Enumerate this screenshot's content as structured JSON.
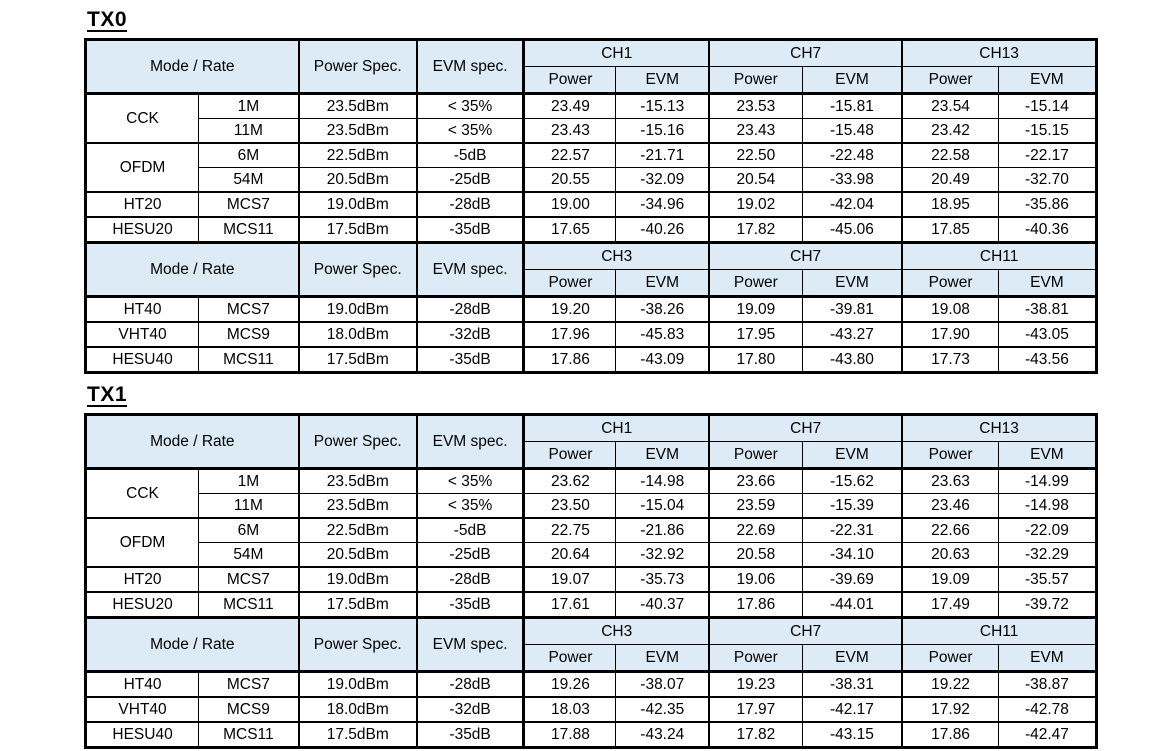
{
  "colors": {
    "header_bg": "#dcebf5",
    "border": "#000000",
    "text": "#000000",
    "page_bg": "#ffffff"
  },
  "labels": {
    "mode_rate": "Mode / Rate",
    "power_spec": "Power Spec.",
    "evm_spec": "EVM spec.",
    "power": "Power",
    "evm": "EVM"
  },
  "sections": [
    {
      "title": "TX0",
      "blocks": [
        {
          "channels": [
            "CH1",
            "CH7",
            "CH13"
          ],
          "groups": [
            {
              "mode": "CCK",
              "rows": [
                {
                  "rate": "1M",
                  "power_spec": "23.5dBm",
                  "evm_spec": "< 35%",
                  "values": [
                    "23.49",
                    "-15.13",
                    "23.53",
                    "-15.81",
                    "23.54",
                    "-15.14"
                  ]
                },
                {
                  "rate": "11M",
                  "power_spec": "23.5dBm",
                  "evm_spec": "< 35%",
                  "values": [
                    "23.43",
                    "-15.16",
                    "23.43",
                    "-15.48",
                    "23.42",
                    "-15.15"
                  ]
                }
              ]
            },
            {
              "mode": "OFDM",
              "rows": [
                {
                  "rate": "6M",
                  "power_spec": "22.5dBm",
                  "evm_spec": "-5dB",
                  "values": [
                    "22.57",
                    "-21.71",
                    "22.50",
                    "-22.48",
                    "22.58",
                    "-22.17"
                  ]
                },
                {
                  "rate": "54M",
                  "power_spec": "20.5dBm",
                  "evm_spec": "-25dB",
                  "values": [
                    "20.55",
                    "-32.09",
                    "20.54",
                    "-33.98",
                    "20.49",
                    "-32.70"
                  ]
                }
              ]
            },
            {
              "mode": "HT20",
              "rows": [
                {
                  "rate": "MCS7",
                  "power_spec": "19.0dBm",
                  "evm_spec": "-28dB",
                  "values": [
                    "19.00",
                    "-34.96",
                    "19.02",
                    "-42.04",
                    "18.95",
                    "-35.86"
                  ]
                }
              ]
            },
            {
              "mode": "HESU20",
              "rows": [
                {
                  "rate": "MCS11",
                  "power_spec": "17.5dBm",
                  "evm_spec": "-35dB",
                  "values": [
                    "17.65",
                    "-40.26",
                    "17.82",
                    "-45.06",
                    "17.85",
                    "-40.36"
                  ]
                }
              ]
            }
          ]
        },
        {
          "channels": [
            "CH3",
            "CH7",
            "CH11"
          ],
          "groups": [
            {
              "mode": "HT40",
              "rows": [
                {
                  "rate": "MCS7",
                  "power_spec": "19.0dBm",
                  "evm_spec": "-28dB",
                  "values": [
                    "19.20",
                    "-38.26",
                    "19.09",
                    "-39.81",
                    "19.08",
                    "-38.81"
                  ]
                }
              ]
            },
            {
              "mode": "VHT40",
              "rows": [
                {
                  "rate": "MCS9",
                  "power_spec": "18.0dBm",
                  "evm_spec": "-32dB",
                  "values": [
                    "17.96",
                    "-45.83",
                    "17.95",
                    "-43.27",
                    "17.90",
                    "-43.05"
                  ]
                }
              ]
            },
            {
              "mode": "HESU40",
              "rows": [
                {
                  "rate": "MCS11",
                  "power_spec": "17.5dBm",
                  "evm_spec": "-35dB",
                  "values": [
                    "17.86",
                    "-43.09",
                    "17.80",
                    "-43.80",
                    "17.73",
                    "-43.56"
                  ]
                }
              ]
            }
          ]
        }
      ]
    },
    {
      "title": "TX1",
      "blocks": [
        {
          "channels": [
            "CH1",
            "CH7",
            "CH13"
          ],
          "groups": [
            {
              "mode": "CCK",
              "rows": [
                {
                  "rate": "1M",
                  "power_spec": "23.5dBm",
                  "evm_spec": "< 35%",
                  "values": [
                    "23.62",
                    "-14.98",
                    "23.66",
                    "-15.62",
                    "23.63",
                    "-14.99"
                  ]
                },
                {
                  "rate": "11M",
                  "power_spec": "23.5dBm",
                  "evm_spec": "< 35%",
                  "values": [
                    "23.50",
                    "-15.04",
                    "23.59",
                    "-15.39",
                    "23.46",
                    "-14.98"
                  ]
                }
              ]
            },
            {
              "mode": "OFDM",
              "rows": [
                {
                  "rate": "6M",
                  "power_spec": "22.5dBm",
                  "evm_spec": "-5dB",
                  "values": [
                    "22.75",
                    "-21.86",
                    "22.69",
                    "-22.31",
                    "22.66",
                    "-22.09"
                  ]
                },
                {
                  "rate": "54M",
                  "power_spec": "20.5dBm",
                  "evm_spec": "-25dB",
                  "values": [
                    "20.64",
                    "-32.92",
                    "20.58",
                    "-34.10",
                    "20.63",
                    "-32.29"
                  ]
                }
              ]
            },
            {
              "mode": "HT20",
              "rows": [
                {
                  "rate": "MCS7",
                  "power_spec": "19.0dBm",
                  "evm_spec": "-28dB",
                  "values": [
                    "19.07",
                    "-35.73",
                    "19.06",
                    "-39.69",
                    "19.09",
                    "-35.57"
                  ]
                }
              ]
            },
            {
              "mode": "HESU20",
              "rows": [
                {
                  "rate": "MCS11",
                  "power_spec": "17.5dBm",
                  "evm_spec": "-35dB",
                  "values": [
                    "17.61",
                    "-40.37",
                    "17.86",
                    "-44.01",
                    "17.49",
                    "-39.72"
                  ]
                }
              ]
            }
          ]
        },
        {
          "channels": [
            "CH3",
            "CH7",
            "CH11"
          ],
          "groups": [
            {
              "mode": "HT40",
              "rows": [
                {
                  "rate": "MCS7",
                  "power_spec": "19.0dBm",
                  "evm_spec": "-28dB",
                  "values": [
                    "19.26",
                    "-38.07",
                    "19.23",
                    "-38.31",
                    "19.22",
                    "-38.87"
                  ]
                }
              ]
            },
            {
              "mode": "VHT40",
              "rows": [
                {
                  "rate": "MCS9",
                  "power_spec": "18.0dBm",
                  "evm_spec": "-32dB",
                  "values": [
                    "18.03",
                    "-42.35",
                    "17.97",
                    "-42.17",
                    "17.92",
                    "-42.78"
                  ]
                }
              ]
            },
            {
              "mode": "HESU40",
              "rows": [
                {
                  "rate": "MCS11",
                  "power_spec": "17.5dBm",
                  "evm_spec": "-35dB",
                  "values": [
                    "17.88",
                    "-43.24",
                    "17.82",
                    "-43.15",
                    "17.86",
                    "-42.47"
                  ]
                }
              ]
            }
          ]
        }
      ]
    }
  ]
}
